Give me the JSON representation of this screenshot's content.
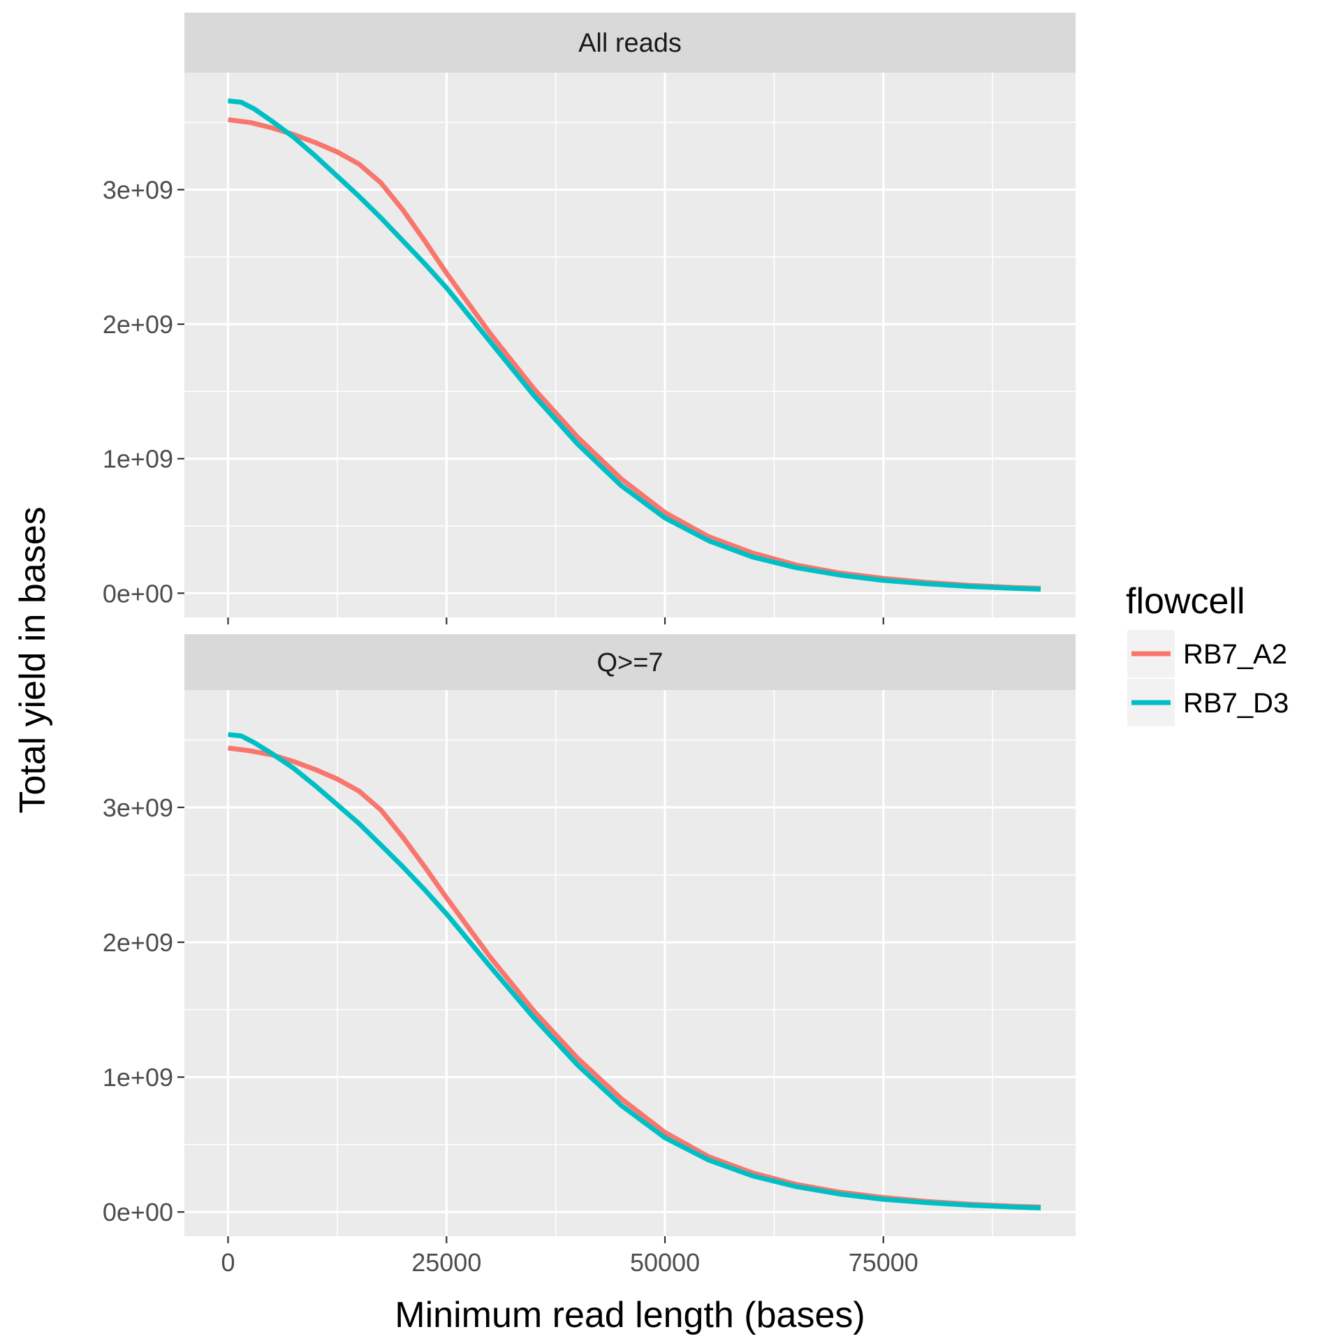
{
  "chart_data": {
    "type": "line",
    "xlabel": "Minimum read length (bases)",
    "ylabel": "Total yield in bases",
    "xlim": [
      -5000,
      97000
    ],
    "ylim": [
      -180000000,
      3870000000
    ],
    "x_ticks": [
      0,
      25000,
      50000,
      75000
    ],
    "x_tick_labels": [
      "0",
      "25000",
      "50000",
      "75000"
    ],
    "y_ticks": [
      0,
      1000000000,
      2000000000,
      3000000000
    ],
    "y_tick_labels": [
      "0e+00",
      "1e+09",
      "2e+09",
      "3e+09"
    ],
    "grid": true,
    "legend": {
      "title": "flowcell",
      "placement": "right",
      "entries": [
        "RB7_A2",
        "RB7_D3"
      ]
    },
    "colors": {
      "RB7_A2": "#F8766D",
      "RB7_D3": "#00BFC4"
    },
    "panels": [
      {
        "strip": "All reads",
        "series": [
          {
            "name": "RB7_A2",
            "x": [
              0,
              2500,
              5000,
              7500,
              10000,
              12500,
              15000,
              17500,
              20000,
              22500,
              25000,
              30000,
              35000,
              40000,
              45000,
              50000,
              55000,
              60000,
              65000,
              70000,
              75000,
              80000,
              85000,
              90000,
              93000
            ],
            "y": [
              3520000000,
              3500000000,
              3460000000,
              3410000000,
              3350000000,
              3280000000,
              3190000000,
              3050000000,
              2850000000,
              2620000000,
              2380000000,
              1930000000,
              1520000000,
              1160000000,
              850000000,
              600000000,
              420000000,
              300000000,
              210000000,
              150000000,
              110000000,
              80000000,
              58000000,
              42000000,
              36000000
            ]
          },
          {
            "name": "RB7_D3",
            "x": [
              0,
              1500,
              3000,
              5000,
              7500,
              10000,
              12500,
              15000,
              17500,
              20000,
              22500,
              25000,
              30000,
              35000,
              40000,
              45000,
              50000,
              55000,
              60000,
              65000,
              70000,
              75000,
              80000,
              85000,
              90000,
              93000
            ],
            "y": [
              3660000000,
              3650000000,
              3600000000,
              3510000000,
              3390000000,
              3250000000,
              3100000000,
              2950000000,
              2790000000,
              2620000000,
              2450000000,
              2270000000,
              1870000000,
              1470000000,
              1110000000,
              800000000,
              560000000,
              390000000,
              270000000,
              190000000,
              135000000,
              95000000,
              70000000,
              50000000,
              36000000,
              30000000
            ]
          }
        ]
      },
      {
        "strip": "Q>=7",
        "series": [
          {
            "name": "RB7_A2",
            "x": [
              0,
              2500,
              5000,
              7500,
              10000,
              12500,
              15000,
              17500,
              20000,
              22500,
              25000,
              30000,
              35000,
              40000,
              45000,
              50000,
              55000,
              60000,
              65000,
              70000,
              75000,
              80000,
              85000,
              90000,
              93000
            ],
            "y": [
              3440000000,
              3420000000,
              3390000000,
              3340000000,
              3280000000,
              3210000000,
              3120000000,
              2980000000,
              2780000000,
              2560000000,
              2330000000,
              1890000000,
              1490000000,
              1140000000,
              840000000,
              590000000,
              410000000,
              290000000,
              205000000,
              147000000,
              107000000,
              78000000,
              57000000,
              42000000,
              36000000
            ]
          },
          {
            "name": "RB7_D3",
            "x": [
              0,
              1500,
              3000,
              5000,
              7500,
              10000,
              12500,
              15000,
              17500,
              20000,
              22500,
              25000,
              30000,
              35000,
              40000,
              45000,
              50000,
              55000,
              60000,
              65000,
              70000,
              75000,
              80000,
              85000,
              90000,
              93000
            ],
            "y": [
              3540000000,
              3530000000,
              3480000000,
              3400000000,
              3290000000,
              3160000000,
              3020000000,
              2880000000,
              2720000000,
              2560000000,
              2390000000,
              2210000000,
              1820000000,
              1440000000,
              1090000000,
              790000000,
              550000000,
              385000000,
              268000000,
              188000000,
              133000000,
              94000000,
              69000000,
              50000000,
              36000000,
              30000000
            ]
          }
        ]
      }
    ]
  }
}
